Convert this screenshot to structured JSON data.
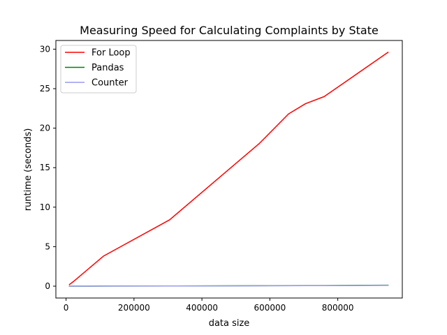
{
  "chart_data": {
    "type": "line",
    "title": "Measuring Speed for Calculating Complaints by State",
    "xlabel": "data size",
    "ylabel": "runtime (seconds)",
    "xlim": [
      -30000,
      990000
    ],
    "ylim": [
      -1.5,
      31.1
    ],
    "xticks": [
      0,
      200000,
      400000,
      600000,
      800000
    ],
    "xtick_labels": [
      "0",
      "200000",
      "400000",
      "600000",
      "800000"
    ],
    "yticks": [
      0,
      5,
      10,
      15,
      20,
      25,
      30
    ],
    "ytick_labels": [
      "0",
      "5",
      "10",
      "15",
      "20",
      "25",
      "30"
    ],
    "grid": false,
    "legend_position": "top-left",
    "series": [
      {
        "name": "For Loop",
        "color": "#ff0000",
        "x": [
          10000,
          25000,
          110000,
          305000,
          570000,
          655000,
          705000,
          760000,
          948000
        ],
        "y": [
          0.2,
          0.7,
          3.8,
          8.4,
          18.1,
          21.8,
          23.1,
          24.0,
          29.6
        ]
      },
      {
        "name": "Pandas",
        "color": "#008000",
        "x": [
          10000,
          25000,
          110000,
          305000,
          570000,
          655000,
          705000,
          760000,
          948000
        ],
        "y": [
          0.0,
          0.0,
          0.01,
          0.02,
          0.06,
          0.07,
          0.08,
          0.08,
          0.12
        ]
      },
      {
        "name": "Counter",
        "color": "#9999ee",
        "x": [
          10000,
          25000,
          110000,
          305000,
          570000,
          655000,
          705000,
          760000,
          948000
        ],
        "y": [
          0.0,
          0.0,
          0.01,
          0.02,
          0.05,
          0.06,
          0.07,
          0.07,
          0.1
        ]
      }
    ]
  }
}
